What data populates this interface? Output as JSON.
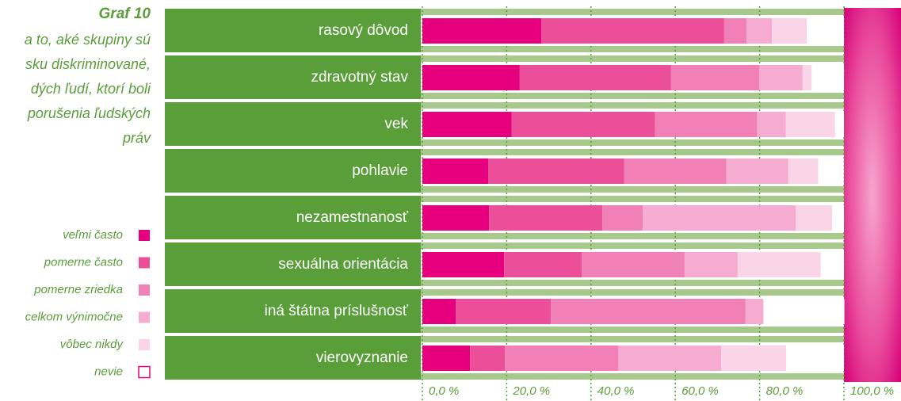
{
  "chart_data": {
    "type": "stacked_barh",
    "title": "Graf 10",
    "subtitle": [
      "a to, aké skupiny sú",
      "sku diskriminované,",
      "dých ľudí, ktorí boli",
      "porušenia ľudských",
      "práv"
    ],
    "categories": [
      "rasový dôvod",
      "zdravotný stav",
      "vek",
      "pohlavie",
      "nezamestnanosť",
      "sexuálna orientácia",
      "iná štátna príslušnosť",
      "vierovyznanie"
    ],
    "series": [
      {
        "name": "veľmi často",
        "color": "#e6007e",
        "values": [
          28.2,
          23.1,
          21.2,
          15.6,
          15.8,
          19.4,
          7.9,
          11.3
        ]
      },
      {
        "name": "pomerne často",
        "color": "#ec4f99",
        "values": [
          43.4,
          35.9,
          34.0,
          32.3,
          26.9,
          18.4,
          22.6,
          8.3
        ]
      },
      {
        "name": "pomerne zriedka",
        "color": "#f080b5",
        "values": [
          5.3,
          20.9,
          24.2,
          24.2,
          9.6,
          24.4,
          46.1,
          26.9
        ]
      },
      {
        "name": "celkom výnimočne",
        "color": "#f5acd0",
        "values": [
          6.0,
          10.3,
          6.8,
          14.7,
          36.3,
          12.6,
          4.3,
          24.4
        ]
      },
      {
        "name": "vôbec nikdy",
        "color": "#fad4e7",
        "values": [
          8.3,
          2.1,
          11.7,
          7.1,
          8.6,
          19.7,
          0,
          15.4
        ]
      },
      {
        "name": "nevie",
        "color": "#ffffff",
        "values": [
          8.8,
          7.7,
          2.1,
          6.0,
          2.8,
          5.5,
          19.2,
          13.7
        ]
      }
    ],
    "xlim": [
      0,
      100
    ],
    "xticks": [
      {
        "value": 0,
        "label": "0,0 %"
      },
      {
        "value": 20,
        "label": "20,0 %"
      },
      {
        "value": 40,
        "label": "40,0 %"
      },
      {
        "value": 60,
        "label": "60,0 %"
      },
      {
        "value": 80,
        "label": "80,0 %"
      },
      {
        "value": 100,
        "label": "100,0 %"
      }
    ]
  }
}
